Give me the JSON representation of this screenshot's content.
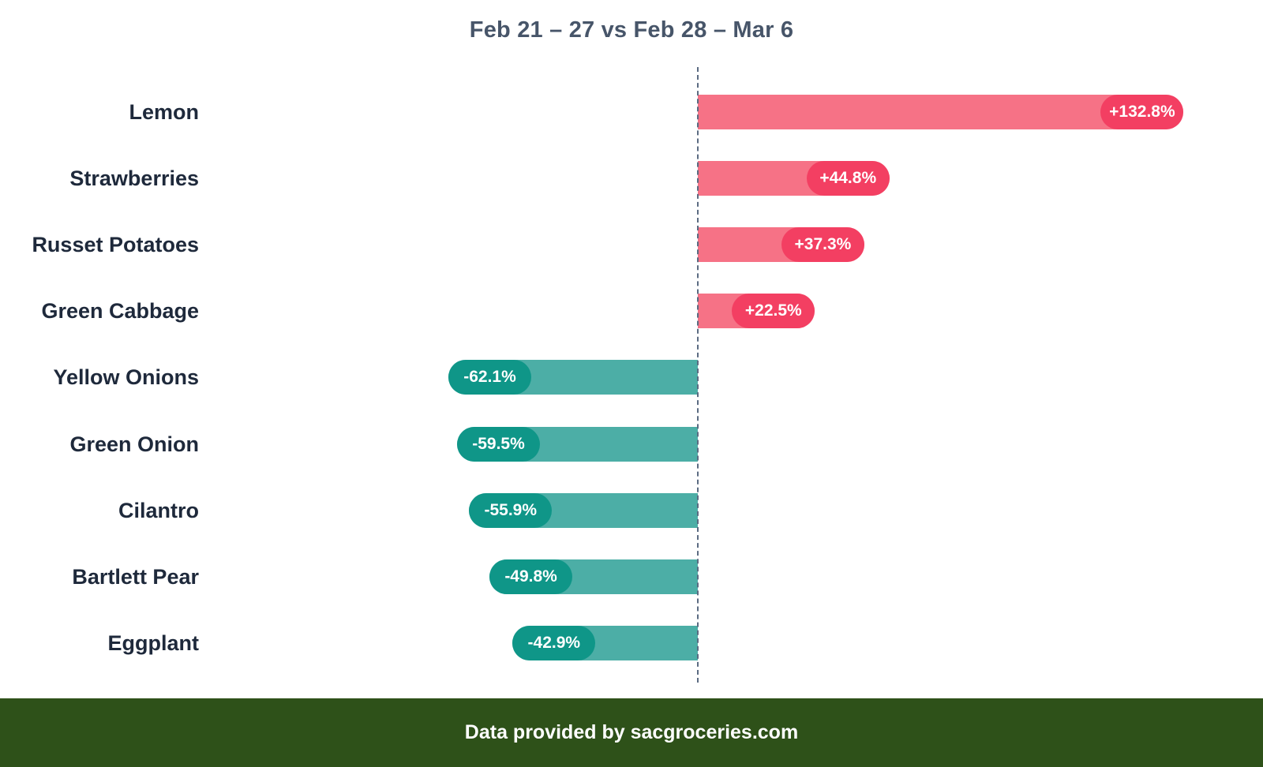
{
  "chart_data": {
    "type": "bar",
    "orientation": "horizontal",
    "title": "Feb 21 – 27 vs Feb 28 – Mar 6",
    "xlabel": "",
    "ylabel": "",
    "unit": "%",
    "grid": false,
    "legend": null,
    "categories": [
      "Lemon",
      "Strawberries",
      "Russet Potatoes",
      "Green Cabbage",
      "Yellow Onions",
      "Green Onion",
      "Cilantro",
      "Bartlett Pear",
      "Eggplant"
    ],
    "values": [
      132.8,
      44.8,
      37.3,
      22.5,
      -62.1,
      -59.5,
      -55.9,
      -49.8,
      -42.9
    ],
    "value_labels": [
      "+132.8%",
      "+44.8%",
      "+37.3%",
      "+22.5%",
      "-62.1%",
      "-59.5%",
      "-55.9%",
      "-49.8%",
      "-42.9%"
    ],
    "colors": {
      "positive_bar": "#f67286",
      "positive_pill": "#f33f62",
      "negative_bar": "#4caea6",
      "negative_pill": "#0f9688",
      "zero_line": "#5b6b82"
    }
  },
  "footer": {
    "text": "Data provided by sacgroceries.com",
    "background": "#2e5119"
  }
}
